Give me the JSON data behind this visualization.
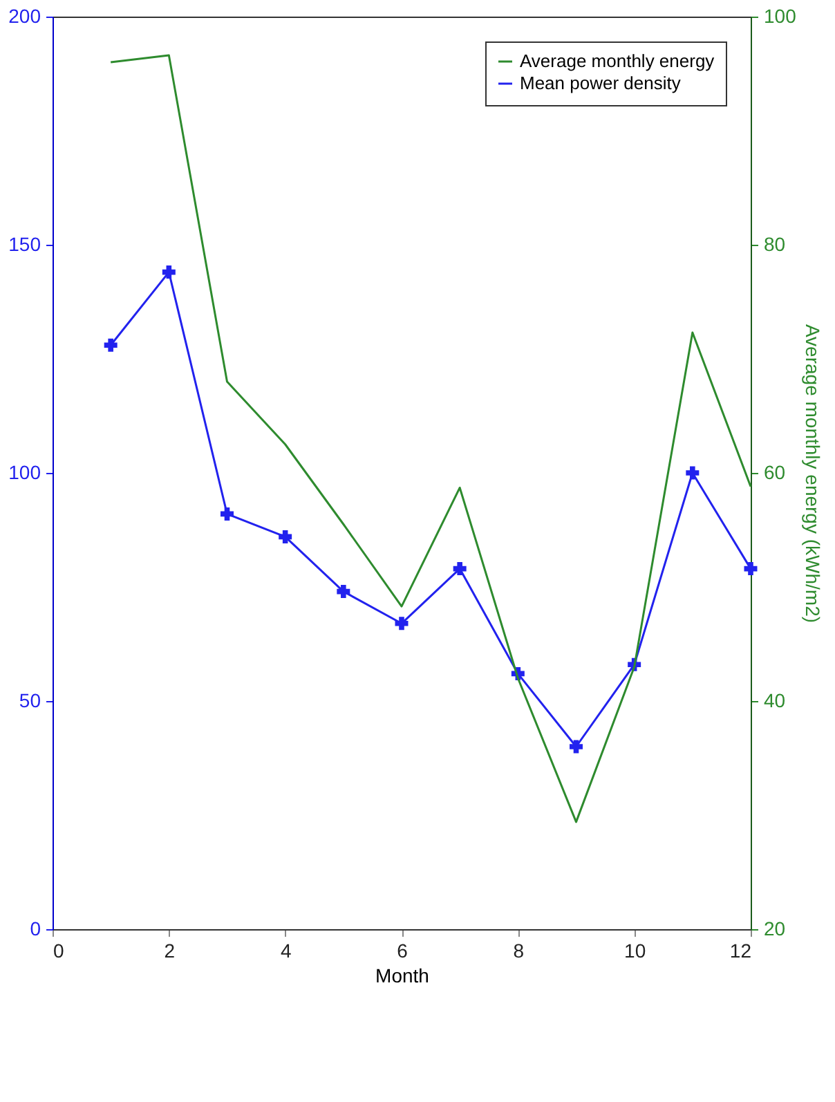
{
  "chart_data": {
    "type": "line",
    "xlabel": "Month",
    "y2label": "Average monthly energy (kWh/m2)",
    "x": [
      1,
      2,
      3,
      4,
      5,
      6,
      7,
      8,
      9,
      10,
      11,
      12
    ],
    "series": [
      {
        "name": "Average monthly energy",
        "color": "#2e8b2e",
        "axis": "y2",
        "marker": "none",
        "values": [
          96,
          96.6,
          68,
          62.5,
          55.5,
          48.3,
          58.7,
          42,
          29.4,
          43,
          72.3,
          58.8
        ]
      },
      {
        "name": "Mean power density",
        "color": "#2222ee",
        "marker": "cross",
        "values": [
          128,
          144,
          91,
          86,
          74,
          67,
          79,
          56,
          40,
          58,
          100,
          79
        ]
      }
    ],
    "xlim": [
      0,
      12
    ],
    "xticks": [
      0,
      2,
      4,
      6,
      8,
      10,
      12
    ],
    "ylim": [
      0,
      200
    ],
    "yticks": [
      0,
      50,
      100,
      150,
      200
    ],
    "y2lim": [
      20,
      100
    ],
    "y2ticks": [
      20,
      40,
      60,
      80,
      100
    ],
    "grid": false,
    "legend": "top right"
  }
}
